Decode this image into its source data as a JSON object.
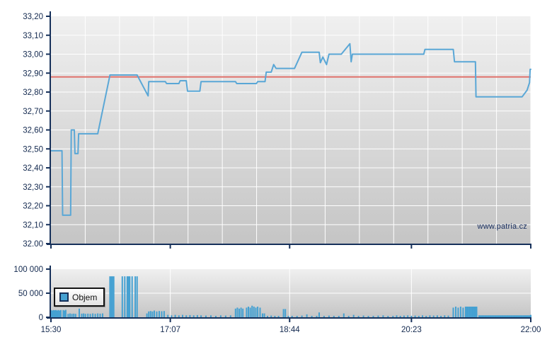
{
  "watermark": "www.patria.cz",
  "legend": {
    "label": "Objem"
  },
  "colors": {
    "axis": "#16305a",
    "tick_label": "#13294f",
    "grid": "#ffffff",
    "plot_bg_top": "#f0f0f0",
    "plot_bg_bottom": "#c5c5c5",
    "price_line": "#5aa7d6",
    "reference_line": "#e0706a",
    "volume_bar": "#45a1d2",
    "watermark": "#1a3060"
  },
  "chart_data": [
    {
      "type": "line",
      "name": "intraday-price",
      "title": "",
      "xlabel": "",
      "ylabel": "",
      "xlim_minutes": [
        0,
        390
      ],
      "ylim": [
        32.0,
        33.2
      ],
      "grid": {
        "h_step": 0.1,
        "v_divisions": 14
      },
      "x_axis": {
        "show_labels": false,
        "ticks": [
          {
            "t": 0,
            "label": "15:30"
          },
          {
            "t": 97,
            "label": "17:07"
          },
          {
            "t": 194,
            "label": "18:44"
          },
          {
            "t": 293,
            "label": "20:23"
          },
          {
            "t": 390,
            "label": "22:00"
          }
        ]
      },
      "y_axis": {
        "ticks": [
          {
            "v": 33.2,
            "label": "33,20"
          },
          {
            "v": 33.1,
            "label": "33,10"
          },
          {
            "v": 33.0,
            "label": "33,00"
          },
          {
            "v": 32.9,
            "label": "32,90"
          },
          {
            "v": 32.8,
            "label": "32,80"
          },
          {
            "v": 32.7,
            "label": "32,70"
          },
          {
            "v": 32.6,
            "label": "32,60"
          },
          {
            "v": 32.5,
            "label": "32,50"
          },
          {
            "v": 32.4,
            "label": "32,40"
          },
          {
            "v": 32.3,
            "label": "32,30"
          },
          {
            "v": 32.2,
            "label": "32,20"
          },
          {
            "v": 32.1,
            "label": "32,10"
          },
          {
            "v": 32.0,
            "label": "32.00"
          }
        ]
      },
      "reference_line": {
        "value": 32.88
      },
      "series": [
        {
          "name": "price",
          "points": [
            [
              0,
              32.49
            ],
            [
              9,
              32.49
            ],
            [
              9.5,
              32.15
            ],
            [
              16,
              32.15
            ],
            [
              16.5,
              32.6
            ],
            [
              19,
              32.6
            ],
            [
              19.5,
              32.475
            ],
            [
              22,
              32.475
            ],
            [
              22.5,
              32.58
            ],
            [
              38,
              32.58
            ],
            [
              48,
              32.89
            ],
            [
              70,
              32.89
            ],
            [
              79,
              32.78
            ],
            [
              79.5,
              32.855
            ],
            [
              93,
              32.855
            ],
            [
              94,
              32.845
            ],
            [
              104,
              32.845
            ],
            [
              105,
              32.86
            ],
            [
              110,
              32.86
            ],
            [
              111,
              32.805
            ],
            [
              121,
              32.805
            ],
            [
              122,
              32.855
            ],
            [
              150,
              32.855
            ],
            [
              151,
              32.845
            ],
            [
              167,
              32.845
            ],
            [
              168,
              32.855
            ],
            [
              174,
              32.855
            ],
            [
              175,
              32.905
            ],
            [
              179,
              32.905
            ],
            [
              181,
              32.945
            ],
            [
              183,
              32.925
            ],
            [
              198,
              32.925
            ],
            [
              204,
              33.01
            ],
            [
              218,
              33.01
            ],
            [
              219,
              32.955
            ],
            [
              221,
              32.985
            ],
            [
              224,
              32.945
            ],
            [
              226,
              33.0
            ],
            [
              236,
              33.0
            ],
            [
              243,
              33.055
            ],
            [
              244,
              32.96
            ],
            [
              245,
              33.0
            ],
            [
              303,
              33.0
            ],
            [
              304,
              33.025
            ],
            [
              327,
              33.025
            ],
            [
              328,
              32.96
            ],
            [
              345,
              32.96
            ],
            [
              345.5,
              32.775
            ],
            [
              383,
              32.775
            ],
            [
              387,
              32.81
            ],
            [
              389,
              32.85
            ],
            [
              389.5,
              32.92
            ],
            [
              390,
              32.92
            ]
          ]
        }
      ]
    },
    {
      "type": "bar",
      "name": "volume",
      "legend": "Objem",
      "ylim": [
        0,
        100000
      ],
      "xlim_minutes": [
        0,
        390
      ],
      "y_axis": {
        "ticks": [
          {
            "v": 100000,
            "label": "100 000"
          },
          {
            "v": 50000,
            "label": "50 000"
          },
          {
            "v": 0,
            "label": "0"
          }
        ]
      },
      "x_axis": {
        "show_labels": true,
        "ticks": [
          {
            "t": 0,
            "label": "15:30"
          },
          {
            "t": 97,
            "label": "17:07"
          },
          {
            "t": 194,
            "label": "18:44"
          },
          {
            "t": 293,
            "label": "20:23"
          },
          {
            "t": 390,
            "label": "22:00"
          }
        ]
      },
      "bars": [
        [
          0,
          15000
        ],
        [
          1,
          14000
        ],
        [
          2,
          15000
        ],
        [
          3,
          14500
        ],
        [
          4,
          15000
        ],
        [
          5,
          14000
        ],
        [
          6,
          15000
        ],
        [
          7,
          14000
        ],
        [
          8,
          15000
        ],
        [
          10,
          15000
        ],
        [
          11,
          14000
        ],
        [
          12,
          15500
        ],
        [
          14,
          7000
        ],
        [
          15.5,
          8000
        ],
        [
          17,
          7000
        ],
        [
          18.5,
          7500
        ],
        [
          20,
          7000
        ],
        [
          23,
          18000
        ],
        [
          25,
          7500
        ],
        [
          26.5,
          8000
        ],
        [
          28,
          7000
        ],
        [
          30,
          7500
        ],
        [
          32,
          7000
        ],
        [
          34,
          8000
        ],
        [
          36,
          7000
        ],
        [
          38,
          8000
        ],
        [
          40,
          7500
        ],
        [
          42,
          8000
        ],
        [
          48,
          85000
        ],
        [
          49,
          85000
        ],
        [
          50,
          85000
        ],
        [
          51,
          85000
        ],
        [
          58,
          85000
        ],
        [
          60,
          85000
        ],
        [
          62,
          85000
        ],
        [
          63,
          85000
        ],
        [
          64,
          85000
        ],
        [
          66,
          85000
        ],
        [
          68.5,
          85000
        ],
        [
          70,
          85000
        ],
        [
          78,
          8000
        ],
        [
          79.5,
          12000
        ],
        [
          81,
          13000
        ],
        [
          82.5,
          12000
        ],
        [
          84,
          14000
        ],
        [
          86,
          12000
        ],
        [
          88,
          13000
        ],
        [
          90,
          12500
        ],
        [
          92,
          13000
        ],
        [
          95,
          5000
        ],
        [
          98,
          4000
        ],
        [
          101,
          5000
        ],
        [
          104,
          4000
        ],
        [
          107,
          5000
        ],
        [
          110,
          4000
        ],
        [
          113,
          4500
        ],
        [
          116,
          4000
        ],
        [
          119,
          4500
        ],
        [
          122,
          4000
        ],
        [
          126,
          3500
        ],
        [
          130,
          4000
        ],
        [
          134,
          3000
        ],
        [
          138,
          4000
        ],
        [
          142,
          3500
        ],
        [
          146,
          4000
        ],
        [
          150,
          18000
        ],
        [
          151.5,
          20000
        ],
        [
          153,
          18000
        ],
        [
          154.5,
          20000
        ],
        [
          156,
          18000
        ],
        [
          159,
          20000
        ],
        [
          160.5,
          22000
        ],
        [
          162,
          20000
        ],
        [
          163.5,
          24000
        ],
        [
          165,
          22000
        ],
        [
          166.5,
          20000
        ],
        [
          168,
          22000
        ],
        [
          170,
          20000
        ],
        [
          172,
          8000
        ],
        [
          173.5,
          8000
        ],
        [
          176,
          3000
        ],
        [
          179,
          3500
        ],
        [
          182,
          3000
        ],
        [
          185,
          3000
        ],
        [
          189,
          17000
        ],
        [
          190.5,
          17000
        ],
        [
          193,
          3000
        ],
        [
          196,
          3000
        ],
        [
          200,
          3000
        ],
        [
          204,
          3500
        ],
        [
          208,
          6000
        ],
        [
          212,
          3000
        ],
        [
          216,
          3000
        ],
        [
          218,
          10000
        ],
        [
          222,
          3000
        ],
        [
          226,
          3500
        ],
        [
          230,
          3000
        ],
        [
          234,
          3000
        ],
        [
          238,
          8000
        ],
        [
          242,
          3000
        ],
        [
          246,
          5000
        ],
        [
          250,
          3000
        ],
        [
          254,
          3500
        ],
        [
          258,
          3000
        ],
        [
          262,
          3000
        ],
        [
          266,
          3500
        ],
        [
          270,
          4000
        ],
        [
          274,
          3000
        ],
        [
          278,
          3000
        ],
        [
          281,
          4000
        ],
        [
          284,
          3000
        ],
        [
          287,
          3500
        ],
        [
          290,
          4000
        ],
        [
          293,
          3000
        ],
        [
          296,
          3500
        ],
        [
          299,
          3000
        ],
        [
          302,
          4000
        ],
        [
          305,
          3000
        ],
        [
          308,
          4000
        ],
        [
          311,
          3500
        ],
        [
          314,
          4000
        ],
        [
          317,
          3000
        ],
        [
          320,
          4000
        ],
        [
          323,
          3500
        ],
        [
          327,
          20000
        ],
        [
          329,
          22000
        ],
        [
          331,
          20000
        ],
        [
          333,
          22000
        ],
        [
          335,
          20000
        ],
        [
          337,
          22000
        ],
        [
          338,
          22000
        ],
        [
          339,
          22000
        ],
        [
          340,
          22000
        ],
        [
          341,
          22000
        ],
        [
          342,
          22000
        ],
        [
          343,
          22000
        ],
        [
          344,
          22000
        ],
        [
          345,
          22000
        ],
        [
          346,
          22000
        ],
        [
          348,
          4000
        ],
        [
          349,
          4000
        ],
        [
          350,
          4000
        ],
        [
          351,
          4000
        ],
        [
          352,
          4000
        ],
        [
          353,
          4000
        ],
        [
          354,
          4000
        ],
        [
          355,
          4000
        ],
        [
          356,
          4000
        ],
        [
          357,
          4000
        ],
        [
          358,
          4000
        ],
        [
          359,
          4000
        ],
        [
          360,
          4000
        ],
        [
          361,
          4000
        ],
        [
          362,
          4000
        ],
        [
          363,
          4000
        ],
        [
          364,
          4000
        ],
        [
          365,
          4000
        ],
        [
          366,
          4000
        ],
        [
          367,
          4000
        ],
        [
          368,
          4000
        ],
        [
          369,
          4000
        ],
        [
          370,
          4000
        ],
        [
          371,
          4000
        ],
        [
          372,
          4000
        ],
        [
          373,
          4000
        ],
        [
          374,
          4000
        ],
        [
          375,
          4000
        ],
        [
          376,
          4000
        ],
        [
          377,
          4000
        ],
        [
          378,
          4000
        ],
        [
          379,
          4000
        ],
        [
          380,
          4000
        ],
        [
          381,
          4000
        ],
        [
          382,
          4000
        ],
        [
          383,
          4000
        ],
        [
          384,
          4000
        ],
        [
          385,
          4000
        ],
        [
          386,
          4000
        ],
        [
          387,
          4000
        ],
        [
          388,
          4000
        ],
        [
          389,
          4000
        ],
        [
          390,
          5000
        ]
      ]
    }
  ]
}
